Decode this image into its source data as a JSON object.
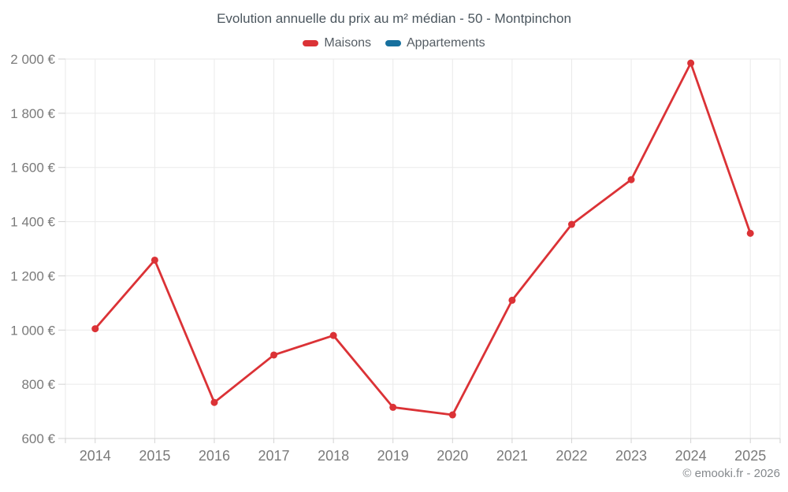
{
  "chart_data": {
    "type": "line",
    "title": "Evolution annuelle du prix au m² médian - 50 - Montpinchon",
    "x_categories": [
      "2014",
      "2015",
      "2016",
      "2017",
      "2018",
      "2019",
      "2020",
      "2021",
      "2022",
      "2023",
      "2024",
      "2025"
    ],
    "series": [
      {
        "name": "Maisons",
        "color": "#db3236",
        "values": [
          1005,
          1258,
          733,
          908,
          980,
          715,
          687,
          1110,
          1390,
          1555,
          1985,
          1357
        ]
      },
      {
        "name": "Appartements",
        "color": "#17709e",
        "values": []
      }
    ],
    "ylim": [
      600,
      2000
    ],
    "ytick_step": 200,
    "ytick_labels": [
      "600 €",
      "800 €",
      "1 000 €",
      "1 200 €",
      "1 400 €",
      "1 600 €",
      "1 800 €",
      "2 000 €"
    ],
    "xlabel": "",
    "ylabel": "",
    "grid": true,
    "legend_position": "top",
    "colors": {
      "grid_line": "#eaeaea",
      "axis_line": "#d2d2d2",
      "tick_label": "#7a7a7a",
      "title_text": "#4b565e"
    }
  },
  "footer": {
    "attribution": "© emooki.fr - 2026"
  }
}
